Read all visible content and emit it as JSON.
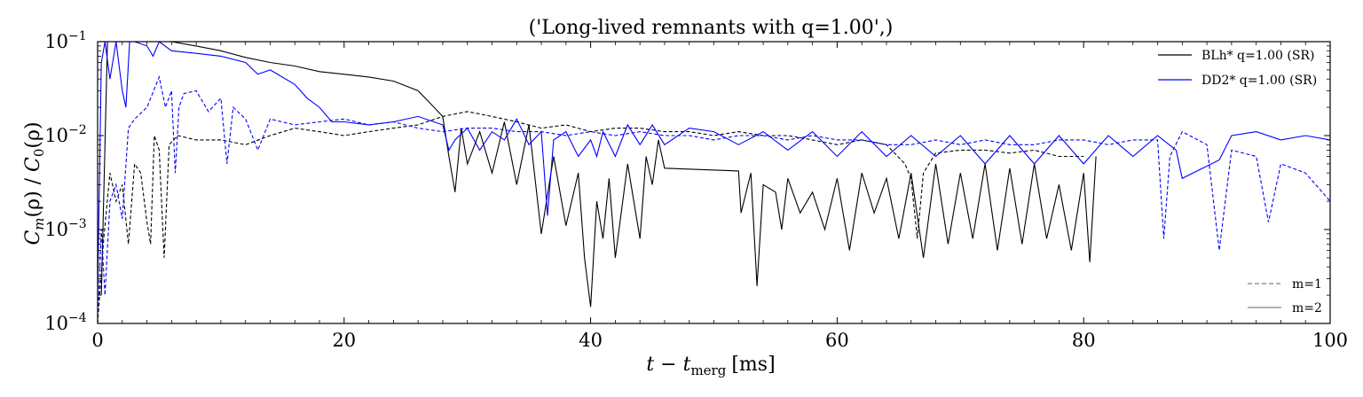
{
  "chart_data": {
    "type": "line",
    "title": "('Long-lived remnants with q=1.00',)",
    "xlabel": "t − t",
    "xlabel_sub": "merg",
    "xlabel_unit": "[ms]",
    "ylabel": "C_m(ρ) / C_0(ρ)",
    "ylabel_parts": {
      "c1": "C",
      "sub1": "m",
      "mid": "(ρ) / ",
      "c2": "C",
      "sub2": "0",
      "end": "(ρ)"
    },
    "xlim": [
      0,
      100
    ],
    "ylim": [
      0.0001,
      0.1
    ],
    "yscale": "log",
    "xticks": [
      0,
      20,
      40,
      60,
      80,
      100
    ],
    "xtick_labels": [
      "0",
      "20",
      "40",
      "60",
      "80",
      "100"
    ],
    "yticks": [
      0.0001,
      0.001,
      0.01,
      0.1
    ],
    "ytick_labels": [
      {
        "base": "10",
        "exp": "−4"
      },
      {
        "base": "10",
        "exp": "−3"
      },
      {
        "base": "10",
        "exp": "−2"
      },
      {
        "base": "10",
        "exp": "−1"
      }
    ],
    "grid": false,
    "legend_models": {
      "placement": "top-right",
      "entries": [
        {
          "label": "BLh* q=1.00 (SR)",
          "color": "#000000"
        },
        {
          "label": "DD2* q=1.00 (SR)",
          "color": "#0000ff"
        }
      ]
    },
    "legend_modes": {
      "placement": "bottom-right",
      "entries": [
        {
          "label": "m=1",
          "style": "dashed",
          "color": "#808080"
        },
        {
          "label": "m=2",
          "style": "solid",
          "color": "#808080"
        }
      ]
    },
    "series": [
      {
        "name": "BLh* q=1.00 (SR)",
        "mode": "m=2",
        "style": "solid",
        "color": "#000000",
        "points": [
          [
            0.3,
            0.0002
          ],
          [
            0.8,
            0.1
          ],
          [
            2,
            0.1
          ],
          [
            4,
            0.1
          ],
          [
            6,
            0.1
          ],
          [
            8,
            0.09
          ],
          [
            10,
            0.08
          ],
          [
            12,
            0.068
          ],
          [
            14,
            0.06
          ],
          [
            16,
            0.055
          ],
          [
            18,
            0.048
          ],
          [
            20,
            0.045
          ],
          [
            22,
            0.042
          ],
          [
            24,
            0.038
          ],
          [
            26,
            0.03
          ],
          [
            27,
            0.022
          ],
          [
            28,
            0.016
          ],
          [
            28.5,
            0.006
          ],
          [
            29,
            0.0025
          ],
          [
            29.5,
            0.012
          ],
          [
            30,
            0.005
          ],
          [
            31,
            0.011
          ],
          [
            32,
            0.004
          ],
          [
            33,
            0.014
          ],
          [
            34,
            0.003
          ],
          [
            35,
            0.013
          ],
          [
            36,
            0.0009
          ],
          [
            37,
            0.006
          ],
          [
            38,
            0.0011
          ],
          [
            39,
            0.004
          ],
          [
            39.5,
            0.0005
          ],
          [
            40,
            0.00015
          ],
          [
            40.5,
            0.002
          ],
          [
            41,
            0.0008
          ],
          [
            41.5,
            0.0035
          ],
          [
            42,
            0.0005
          ],
          [
            43,
            0.005
          ],
          [
            44,
            0.0008
          ],
          [
            44.5,
            0.006
          ],
          [
            45,
            0.003
          ],
          [
            45.5,
            0.009
          ],
          [
            46,
            0.0045
          ],
          [
            52,
            0.0042
          ],
          [
            52.2,
            0.0015
          ],
          [
            53,
            0.004
          ],
          [
            53.5,
            0.00025
          ],
          [
            54,
            0.003
          ],
          [
            55,
            0.0025
          ],
          [
            55.5,
            0.001
          ],
          [
            56,
            0.0035
          ],
          [
            57,
            0.0015
          ],
          [
            58,
            0.0025
          ],
          [
            59,
            0.001
          ],
          [
            60,
            0.0035
          ],
          [
            61,
            0.0006
          ],
          [
            62,
            0.004
          ],
          [
            63,
            0.0015
          ],
          [
            64,
            0.0035
          ],
          [
            65,
            0.0008
          ],
          [
            66,
            0.004
          ],
          [
            67,
            0.0005
          ],
          [
            68,
            0.005
          ],
          [
            69,
            0.0007
          ],
          [
            70,
            0.004
          ],
          [
            71,
            0.0008
          ],
          [
            72,
            0.005
          ],
          [
            73,
            0.0006
          ],
          [
            74,
            0.0045
          ],
          [
            75,
            0.0007
          ],
          [
            76,
            0.005
          ],
          [
            77,
            0.0008
          ],
          [
            78,
            0.003
          ],
          [
            79,
            0.0006
          ],
          [
            80,
            0.004
          ],
          [
            80.5,
            0.00045
          ],
          [
            81,
            0.006
          ]
        ]
      },
      {
        "name": "BLh* q=1.00 (SR)",
        "mode": "m=1",
        "style": "dashed",
        "color": "#000000",
        "points": [
          [
            0,
            0.0001
          ],
          [
            0.5,
            0.0008
          ],
          [
            1,
            0.004
          ],
          [
            1.5,
            0.002
          ],
          [
            2,
            0.003
          ],
          [
            2.5,
            0.0007
          ],
          [
            3,
            0.005
          ],
          [
            3.5,
            0.004
          ],
          [
            4,
            0.0012
          ],
          [
            4.3,
            0.0007
          ],
          [
            4.6,
            0.01
          ],
          [
            5,
            0.007
          ],
          [
            5.4,
            0.0005
          ],
          [
            5.8,
            0.008
          ],
          [
            6.5,
            0.01
          ],
          [
            8,
            0.009
          ],
          [
            10,
            0.009
          ],
          [
            12,
            0.008
          ],
          [
            14,
            0.01
          ],
          [
            16,
            0.012
          ],
          [
            18,
            0.011
          ],
          [
            20,
            0.01
          ],
          [
            22,
            0.011
          ],
          [
            24,
            0.012
          ],
          [
            26,
            0.013
          ],
          [
            28,
            0.016
          ],
          [
            30,
            0.018
          ],
          [
            32,
            0.016
          ],
          [
            34,
            0.014
          ],
          [
            36,
            0.012
          ],
          [
            38,
            0.013
          ],
          [
            40,
            0.011
          ],
          [
            42,
            0.012
          ],
          [
            44,
            0.012
          ],
          [
            46,
            0.011
          ],
          [
            48,
            0.011
          ],
          [
            50,
            0.01
          ],
          [
            52,
            0.011
          ],
          [
            54,
            0.01
          ],
          [
            56,
            0.01
          ],
          [
            58,
            0.009
          ],
          [
            60,
            0.008
          ],
          [
            62,
            0.009
          ],
          [
            64,
            0.008
          ],
          [
            65.5,
            0.005
          ],
          [
            66,
            0.0035
          ],
          [
            66.5,
            0.0008
          ],
          [
            67,
            0.004
          ],
          [
            68,
            0.0065
          ],
          [
            70,
            0.007
          ],
          [
            72,
            0.007
          ],
          [
            74,
            0.0065
          ],
          [
            76,
            0.007
          ],
          [
            78,
            0.006
          ],
          [
            80,
            0.006
          ]
        ]
      },
      {
        "name": "DD2* q=1.00 (SR)",
        "mode": "m=2",
        "style": "solid",
        "color": "#0000ff",
        "points": [
          [
            0,
            0.0002
          ],
          [
            0.3,
            0.06
          ],
          [
            0.6,
            0.1
          ],
          [
            1,
            0.04
          ],
          [
            1.5,
            0.1
          ],
          [
            2,
            0.03
          ],
          [
            2.3,
            0.02
          ],
          [
            2.6,
            0.1
          ],
          [
            3,
            0.1
          ],
          [
            4,
            0.09
          ],
          [
            4.5,
            0.07
          ],
          [
            5,
            0.1
          ],
          [
            6,
            0.08
          ],
          [
            8,
            0.075
          ],
          [
            10,
            0.07
          ],
          [
            12,
            0.06
          ],
          [
            13,
            0.045
          ],
          [
            14,
            0.05
          ],
          [
            16,
            0.035
          ],
          [
            17,
            0.025
          ],
          [
            18,
            0.02
          ],
          [
            19,
            0.014
          ],
          [
            20,
            0.014
          ],
          [
            22,
            0.013
          ],
          [
            24,
            0.014
          ],
          [
            26,
            0.016
          ],
          [
            28,
            0.013
          ],
          [
            28.5,
            0.007
          ],
          [
            29,
            0.009
          ],
          [
            30,
            0.012
          ],
          [
            31,
            0.007
          ],
          [
            32,
            0.011
          ],
          [
            33,
            0.009
          ],
          [
            34,
            0.015
          ],
          [
            35,
            0.008
          ],
          [
            36,
            0.011
          ],
          [
            36.5,
            0.0014
          ],
          [
            37,
            0.009
          ],
          [
            38,
            0.011
          ],
          [
            39,
            0.006
          ],
          [
            40,
            0.009
          ],
          [
            40.5,
            0.006
          ],
          [
            41,
            0.011
          ],
          [
            42,
            0.006
          ],
          [
            43,
            0.013
          ],
          [
            44,
            0.008
          ],
          [
            45,
            0.013
          ],
          [
            46,
            0.008
          ],
          [
            48,
            0.012
          ],
          [
            50,
            0.011
          ],
          [
            52,
            0.008
          ],
          [
            54,
            0.011
          ],
          [
            56,
            0.007
          ],
          [
            58,
            0.011
          ],
          [
            60,
            0.006
          ],
          [
            62,
            0.011
          ],
          [
            64,
            0.006
          ],
          [
            66,
            0.01
          ],
          [
            68,
            0.006
          ],
          [
            70,
            0.01
          ],
          [
            72,
            0.005
          ],
          [
            74,
            0.01
          ],
          [
            76,
            0.005
          ],
          [
            78,
            0.01
          ],
          [
            80,
            0.005
          ],
          [
            82,
            0.01
          ],
          [
            84,
            0.006
          ],
          [
            86,
            0.01
          ],
          [
            87.5,
            0.007
          ],
          [
            88,
            0.0035
          ],
          [
            91,
            0.0055
          ],
          [
            92,
            0.01
          ],
          [
            94,
            0.011
          ],
          [
            96,
            0.009
          ],
          [
            98,
            0.01
          ],
          [
            100,
            0.009
          ]
        ]
      },
      {
        "name": "DD2* q=1.00 (SR)",
        "mode": "m=1",
        "style": "dashed",
        "color": "#0000ff",
        "points": [
          [
            0,
            0.0001
          ],
          [
            0.3,
            0.001
          ],
          [
            0.6,
            0.0002
          ],
          [
            1,
            0.002
          ],
          [
            1.5,
            0.003
          ],
          [
            2,
            0.0013
          ],
          [
            2.5,
            0.012
          ],
          [
            3,
            0.015
          ],
          [
            4,
            0.02
          ],
          [
            5,
            0.042
          ],
          [
            5.5,
            0.02
          ],
          [
            6,
            0.03
          ],
          [
            6.3,
            0.004
          ],
          [
            6.6,
            0.02
          ],
          [
            7,
            0.028
          ],
          [
            8,
            0.03
          ],
          [
            9,
            0.018
          ],
          [
            10,
            0.025
          ],
          [
            10.5,
            0.005
          ],
          [
            11,
            0.02
          ],
          [
            12,
            0.015
          ],
          [
            13,
            0.007
          ],
          [
            14,
            0.015
          ],
          [
            16,
            0.013
          ],
          [
            18,
            0.014
          ],
          [
            20,
            0.015
          ],
          [
            22,
            0.013
          ],
          [
            24,
            0.014
          ],
          [
            26,
            0.012
          ],
          [
            28,
            0.011
          ],
          [
            30,
            0.012
          ],
          [
            32,
            0.012
          ],
          [
            34,
            0.011
          ],
          [
            36,
            0.011
          ],
          [
            38,
            0.01
          ],
          [
            40,
            0.011
          ],
          [
            42,
            0.01
          ],
          [
            44,
            0.011
          ],
          [
            46,
            0.01
          ],
          [
            48,
            0.01
          ],
          [
            50,
            0.009
          ],
          [
            52,
            0.01
          ],
          [
            54,
            0.01
          ],
          [
            56,
            0.009
          ],
          [
            58,
            0.01
          ],
          [
            60,
            0.009
          ],
          [
            62,
            0.009
          ],
          [
            64,
            0.008
          ],
          [
            66,
            0.008
          ],
          [
            68,
            0.009
          ],
          [
            70,
            0.008
          ],
          [
            72,
            0.009
          ],
          [
            74,
            0.008
          ],
          [
            76,
            0.008
          ],
          [
            78,
            0.009
          ],
          [
            80,
            0.009
          ],
          [
            82,
            0.008
          ],
          [
            84,
            0.009
          ],
          [
            86,
            0.009
          ],
          [
            86.5,
            0.0008
          ],
          [
            87,
            0.006
          ],
          [
            88,
            0.011
          ],
          [
            90,
            0.008
          ],
          [
            91,
            0.0006
          ],
          [
            92,
            0.007
          ],
          [
            94,
            0.006
          ],
          [
            95,
            0.0012
          ],
          [
            96,
            0.005
          ],
          [
            98,
            0.004
          ],
          [
            100,
            0.002
          ]
        ]
      }
    ]
  }
}
